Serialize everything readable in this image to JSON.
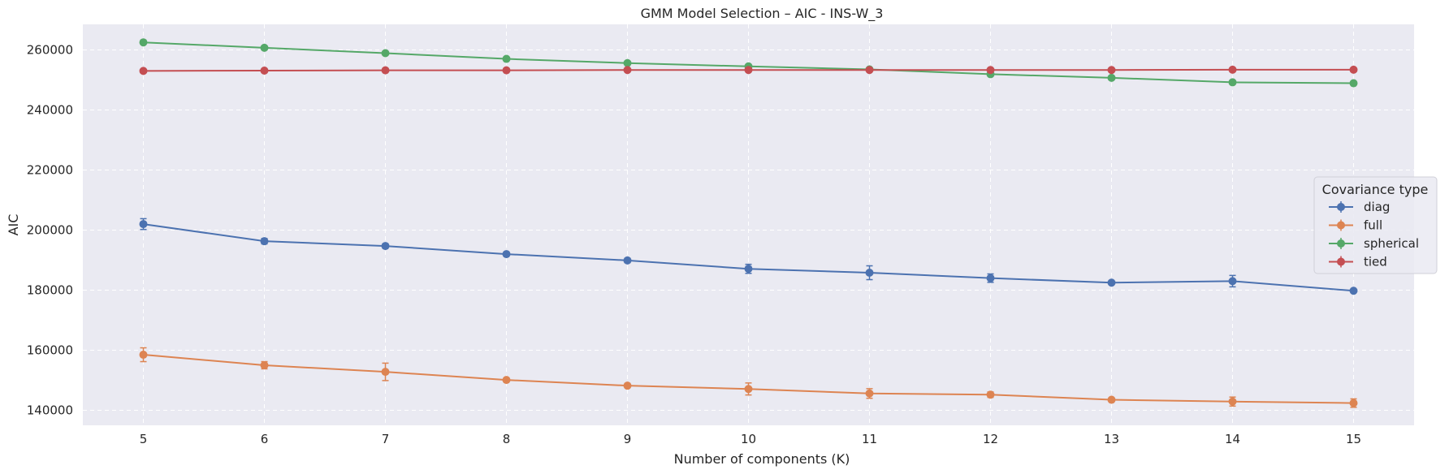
{
  "chart_data": {
    "type": "line",
    "title": "GMM Model Selection – AIC - INS-W_3",
    "xlabel": "Number of components (K)",
    "ylabel": "AIC",
    "x": [
      5,
      6,
      7,
      8,
      9,
      10,
      11,
      12,
      13,
      14,
      15
    ],
    "xlim": [
      4.5,
      15.5
    ],
    "ylim": [
      135000,
      268500
    ],
    "yticks": [
      140000,
      160000,
      180000,
      200000,
      220000,
      240000,
      260000
    ],
    "grid": true,
    "error_bars": true,
    "legend": {
      "title": "Covariance type",
      "position": "center-right"
    },
    "series": [
      {
        "name": "diag",
        "color": "#4c72b0",
        "values": [
          202000,
          196300,
          194700,
          192000,
          189900,
          187100,
          185800,
          184000,
          182500,
          183000,
          179800
        ],
        "errors": [
          1800,
          900,
          700,
          600,
          700,
          1500,
          2300,
          1400,
          500,
          1900,
          400
        ]
      },
      {
        "name": "full",
        "color": "#dd8452",
        "values": [
          158500,
          155000,
          152800,
          150100,
          148200,
          147100,
          145600,
          145200,
          143500,
          142900,
          142400
        ],
        "errors": [
          2300,
          1200,
          2900,
          500,
          400,
          2000,
          1600,
          900,
          300,
          1500,
          1400
        ]
      },
      {
        "name": "spherical",
        "color": "#55a868",
        "values": [
          262500,
          260700,
          258900,
          257000,
          255600,
          254500,
          253500,
          251900,
          250700,
          249200,
          248900
        ],
        "errors": [
          300,
          400,
          300,
          200,
          300,
          300,
          300,
          300,
          300,
          300,
          300
        ]
      },
      {
        "name": "tied",
        "color": "#c44e52",
        "values": [
          253000,
          253100,
          253200,
          253200,
          253300,
          253300,
          253300,
          253300,
          253300,
          253400,
          253400
        ],
        "errors": [
          200,
          200,
          200,
          200,
          200,
          200,
          200,
          200,
          200,
          200,
          200
        ]
      }
    ]
  }
}
